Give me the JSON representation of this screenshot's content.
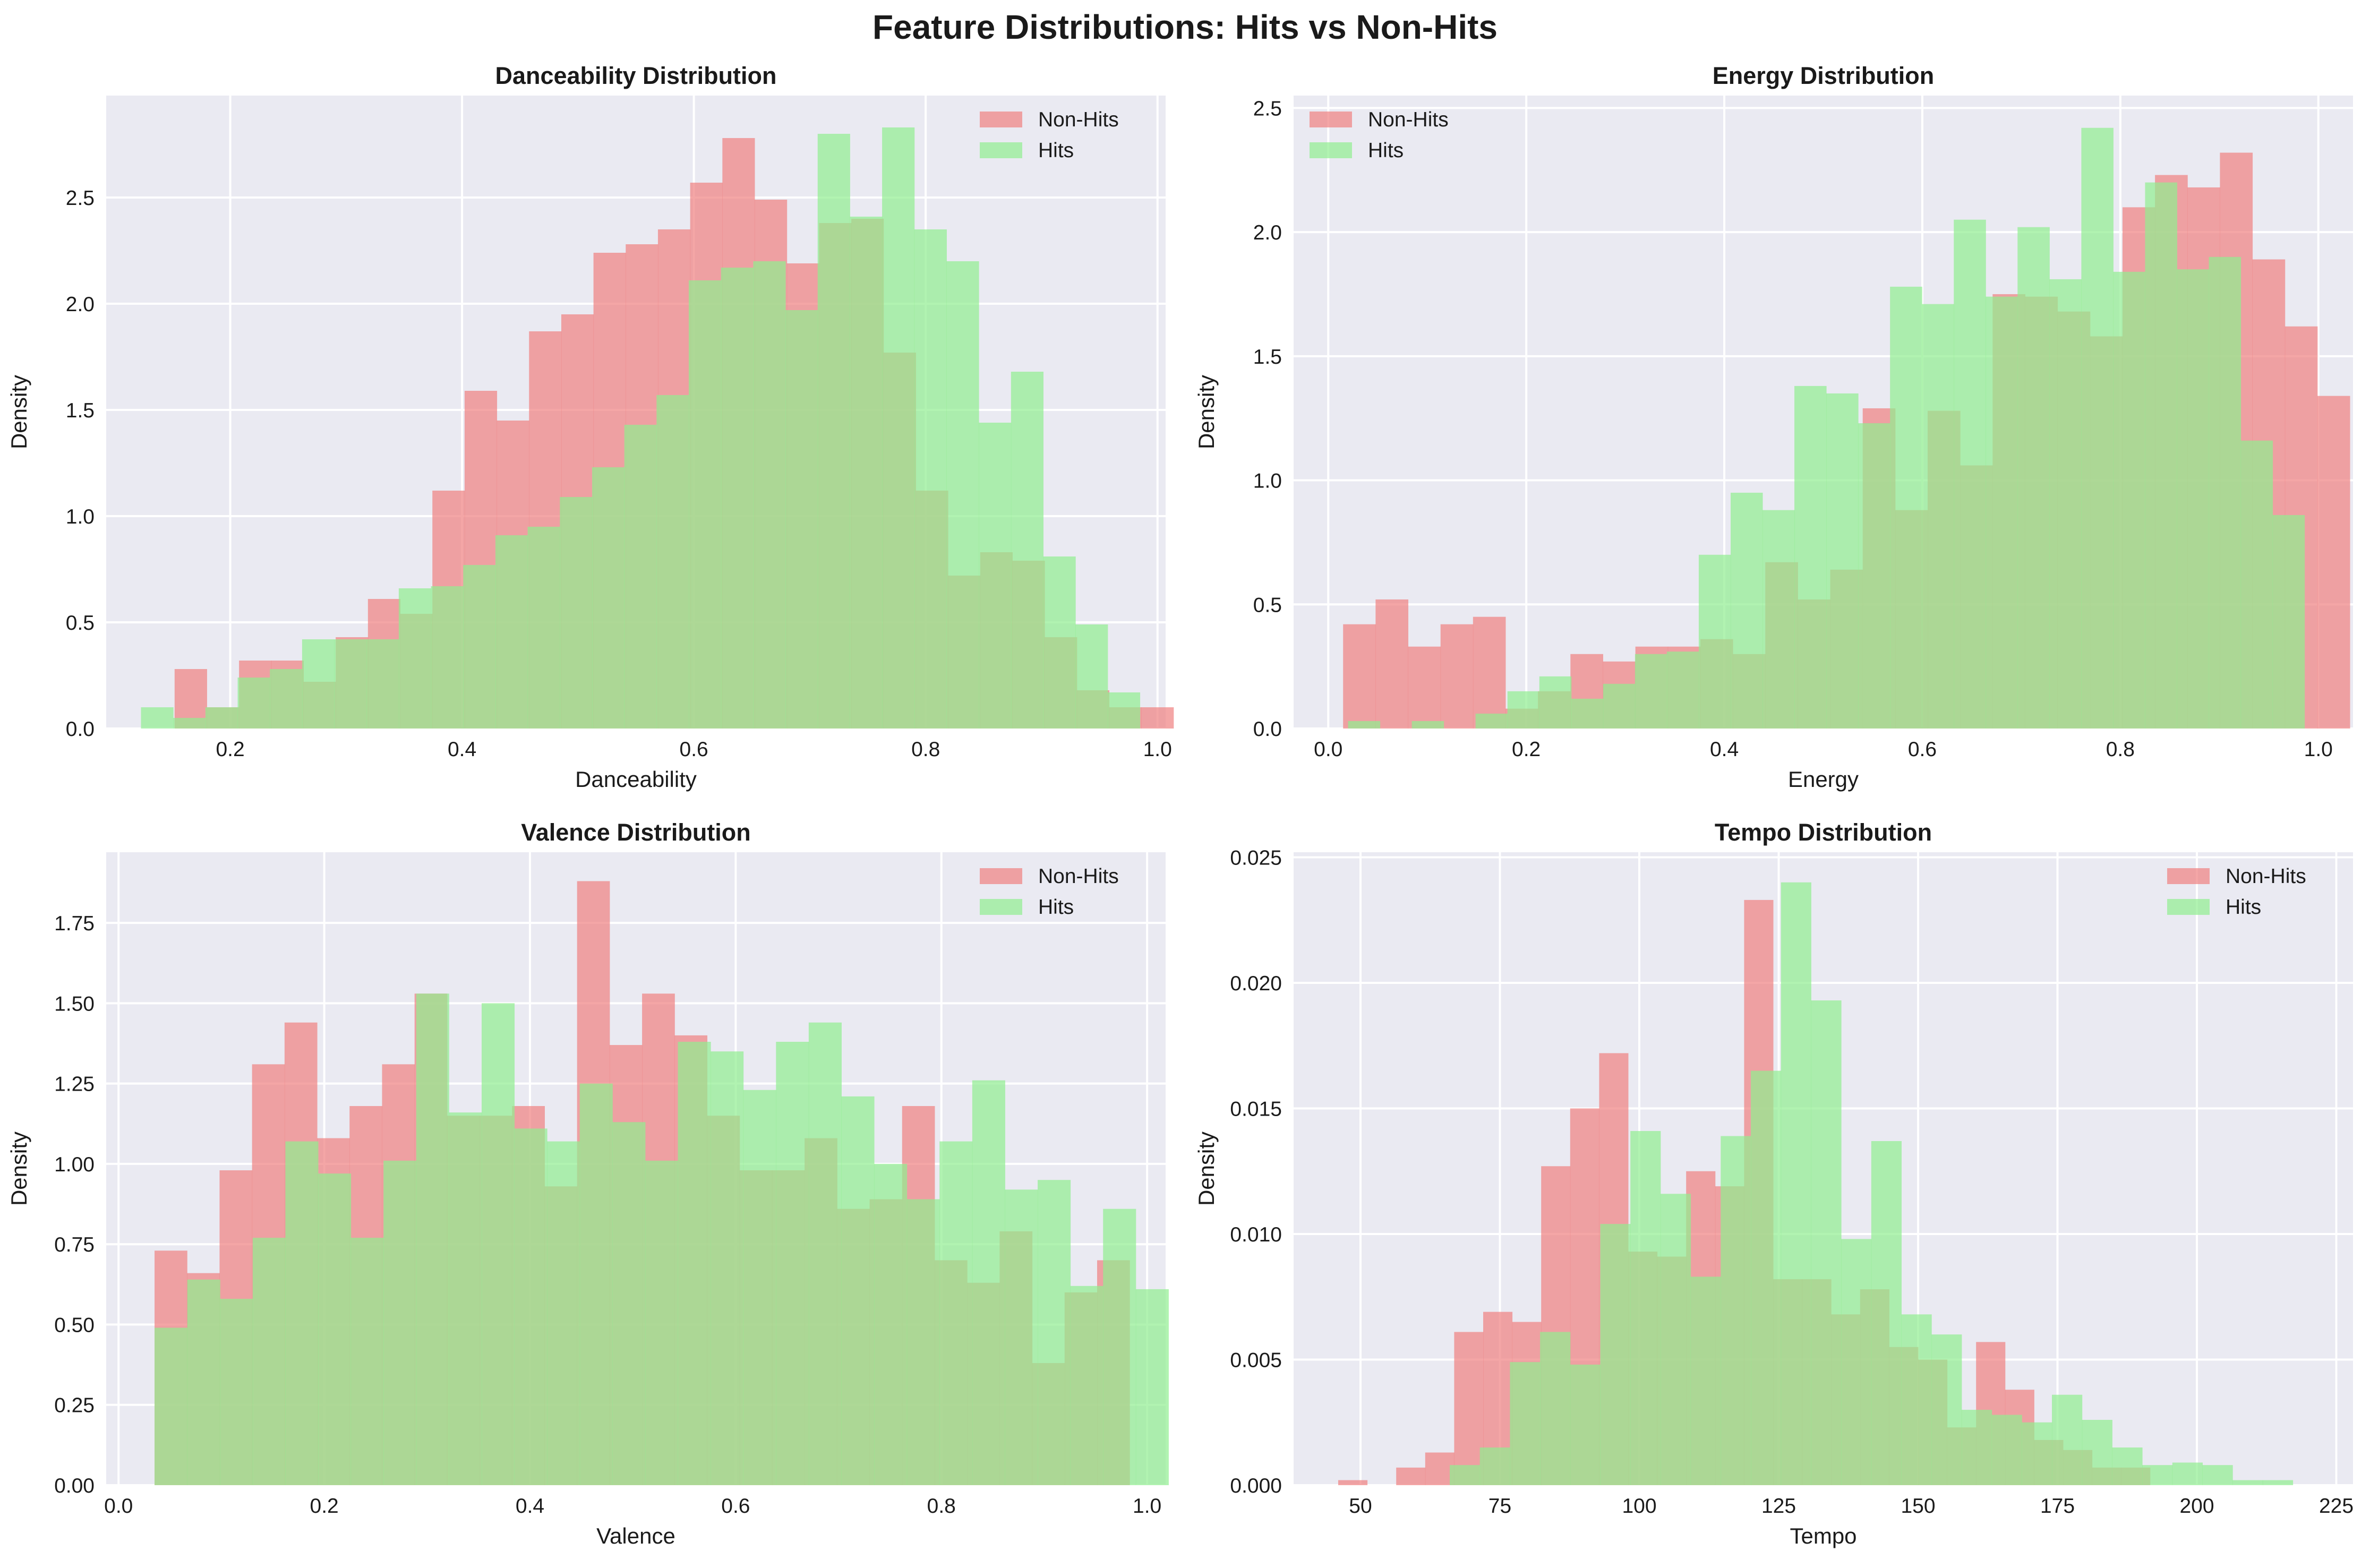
{
  "suptitle": "Feature Distributions: Hits vs Non-Hits",
  "colors": {
    "non_hits": "#F08080",
    "hits": "#90EE90",
    "plot_bg": "#EAEAF2",
    "grid": "#FFFFFF"
  },
  "chart_data": [
    {
      "type": "histogram",
      "title": "Danceability Distribution",
      "xlabel": "Danceability",
      "ylabel": "Density",
      "xlim": [
        0.093,
        1.007
      ],
      "ylim": [
        0,
        2.98
      ],
      "xticks": [
        0.2,
        0.4,
        0.6,
        0.8,
        1.0
      ],
      "xtick_labels": [
        "0.2",
        "0.4",
        "0.6",
        "0.8",
        "1.0"
      ],
      "yticks": [
        0.0,
        0.5,
        1.0,
        1.5,
        2.0,
        2.5
      ],
      "ytick_labels": [
        "0.0",
        "0.5",
        "1.0",
        "1.5",
        "2.0",
        "2.5"
      ],
      "legend_position": "upper right",
      "series": [
        {
          "name": "Non-Hits",
          "bin_start": 0.152,
          "bin_width": 0.0278,
          "values": [
            0.28,
            0.1,
            0.32,
            0.32,
            0.22,
            0.43,
            0.61,
            0.54,
            1.12,
            1.59,
            1.45,
            1.87,
            1.95,
            2.24,
            2.28,
            2.35,
            2.57,
            2.78,
            2.49,
            2.19,
            2.38,
            2.4,
            1.77,
            1.12,
            0.72,
            0.83,
            0.79,
            0.43,
            0.18,
            0.1,
            0.1
          ]
        },
        {
          "name": "Hits",
          "bin_start": 0.123,
          "bin_width": 0.0278,
          "values": [
            0.1,
            0.05,
            0.1,
            0.24,
            0.28,
            0.42,
            0.42,
            0.42,
            0.66,
            0.67,
            0.77,
            0.91,
            0.95,
            1.09,
            1.23,
            1.43,
            1.57,
            2.11,
            2.17,
            2.2,
            1.97,
            2.8,
            2.41,
            2.83,
            2.35,
            2.2,
            1.44,
            1.68,
            0.81,
            0.49,
            0.17
          ]
        }
      ]
    },
    {
      "type": "histogram",
      "title": "Energy Distribution",
      "xlabel": "Energy",
      "ylabel": "Density",
      "xlim": [
        -0.035,
        1.035
      ],
      "ylim": [
        0,
        2.55
      ],
      "xticks": [
        0.0,
        0.2,
        0.4,
        0.6,
        0.8,
        1.0
      ],
      "xtick_labels": [
        "0.0",
        "0.2",
        "0.4",
        "0.6",
        "0.8",
        "1.0"
      ],
      "yticks": [
        0.0,
        0.5,
        1.0,
        1.5,
        2.0,
        2.5
      ],
      "ytick_labels": [
        "0.0",
        "0.5",
        "1.0",
        "1.5",
        "2.0",
        "2.5"
      ],
      "legend_position": "upper left",
      "series": [
        {
          "name": "Non-Hits",
          "bin_start": 0.015,
          "bin_width": 0.0328,
          "values": [
            0.42,
            0.52,
            0.33,
            0.42,
            0.45,
            0.08,
            0.15,
            0.3,
            0.27,
            0.33,
            0.33,
            0.36,
            0.3,
            0.67,
            0.52,
            0.64,
            1.29,
            0.88,
            1.28,
            1.06,
            1.75,
            1.74,
            1.68,
            1.58,
            2.1,
            2.23,
            2.18,
            2.32,
            1.89,
            1.62,
            1.34
          ]
        },
        {
          "name": "Hits",
          "bin_start": 0.02,
          "bin_width": 0.0322,
          "values": [
            0.03,
            0.0,
            0.03,
            0.0,
            0.06,
            0.15,
            0.21,
            0.12,
            0.18,
            0.3,
            0.31,
            0.7,
            0.95,
            0.88,
            1.38,
            1.35,
            1.23,
            1.78,
            1.71,
            2.05,
            1.74,
            2.02,
            1.81,
            2.42,
            1.84,
            2.2,
            1.85,
            1.9,
            1.16,
            0.86
          ]
        }
      ]
    },
    {
      "type": "histogram",
      "title": "Valence Distribution",
      "xlabel": "Valence",
      "ylabel": "Density",
      "xlim": [
        -0.012,
        1.018
      ],
      "ylim": [
        0,
        1.97
      ],
      "xticks": [
        0.0,
        0.2,
        0.4,
        0.6,
        0.8,
        1.0
      ],
      "xtick_labels": [
        "0.0",
        "0.2",
        "0.4",
        "0.6",
        "0.8",
        "1.0"
      ],
      "yticks": [
        0.0,
        0.25,
        0.5,
        0.75,
        1.0,
        1.25,
        1.5,
        1.75
      ],
      "ytick_labels": [
        "0.00",
        "0.25",
        "0.50",
        "0.75",
        "1.00",
        "1.25",
        "1.50",
        "1.75"
      ],
      "legend_position": "upper right",
      "series": [
        {
          "name": "Non-Hits",
          "bin_start": 0.035,
          "bin_width": 0.0316,
          "values": [
            0.73,
            0.66,
            0.98,
            1.31,
            1.44,
            1.08,
            1.18,
            1.31,
            1.53,
            1.15,
            1.15,
            1.18,
            0.93,
            1.88,
            1.37,
            1.53,
            1.4,
            1.15,
            0.98,
            0.98,
            1.08,
            0.86,
            0.89,
            1.18,
            0.7,
            0.63,
            0.79,
            0.38,
            0.6,
            0.7
          ]
        },
        {
          "name": "Hits",
          "bin_start": 0.035,
          "bin_width": 0.0318,
          "values": [
            0.49,
            0.64,
            0.58,
            0.77,
            1.07,
            0.97,
            0.77,
            1.01,
            1.53,
            1.16,
            1.5,
            1.11,
            1.07,
            1.25,
            1.13,
            1.01,
            1.38,
            1.35,
            1.23,
            1.38,
            1.44,
            1.21,
            1.0,
            0.89,
            1.07,
            1.26,
            0.92,
            0.95,
            0.62,
            0.86,
            0.61
          ]
        }
      ]
    },
    {
      "type": "histogram",
      "title": "Tempo Distribution",
      "xlabel": "Tempo",
      "ylabel": "Density",
      "xlim": [
        38,
        228
      ],
      "ylim": [
        0,
        0.0252
      ],
      "xticks": [
        50,
        75,
        100,
        125,
        150,
        175,
        200,
        225
      ],
      "xtick_labels": [
        "50",
        "75",
        "100",
        "125",
        "150",
        "175",
        "200",
        "225"
      ],
      "yticks": [
        0.0,
        0.005,
        0.01,
        0.015,
        0.02,
        0.025
      ],
      "ytick_labels": [
        "0.000",
        "0.005",
        "0.010",
        "0.015",
        "0.020",
        "0.025"
      ],
      "legend_position": "upper right",
      "series": [
        {
          "name": "Non-Hits",
          "bin_start": 46,
          "bin_width": 5.2,
          "values": [
            0.0002,
            0.0,
            0.0007,
            0.0013,
            0.0061,
            0.0069,
            0.0065,
            0.0127,
            0.015,
            0.0172,
            0.0093,
            0.0091,
            0.0125,
            0.0119,
            0.0233,
            0.0082,
            0.0082,
            0.0068,
            0.0078,
            0.0055,
            0.005,
            0.0023,
            0.0057,
            0.0038,
            0.0018,
            0.0014,
            0.0007,
            0.0007
          ]
        },
        {
          "name": "Hits",
          "bin_start": 66,
          "bin_width": 5.4,
          "values": [
            0.0008,
            0.0015,
            0.0049,
            0.0061,
            0.0048,
            0.0104,
            0.0141,
            0.0116,
            0.0083,
            0.0139,
            0.0165,
            0.024,
            0.0193,
            0.0098,
            0.0137,
            0.0068,
            0.006,
            0.003,
            0.0028,
            0.0025,
            0.0036,
            0.0026,
            0.0015,
            0.0008,
            0.0009,
            0.0008,
            0.0002,
            0.0002
          ]
        }
      ]
    }
  ]
}
